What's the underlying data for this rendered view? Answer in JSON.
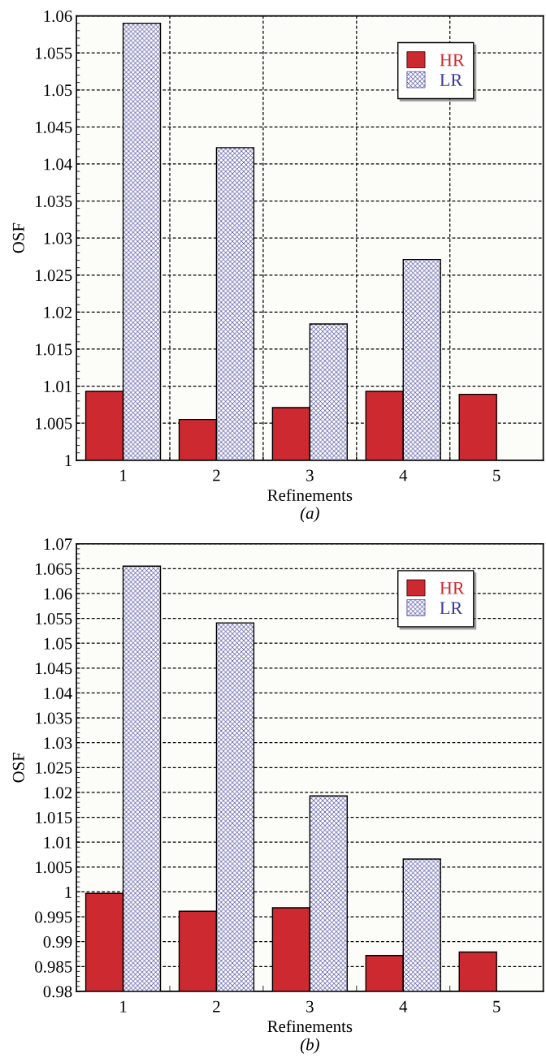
{
  "chart_data": [
    {
      "type": "bar",
      "categories": [
        "1",
        "2",
        "3",
        "4",
        "5"
      ],
      "xlabel": "Refinements",
      "ylabel": "OSF",
      "ylim": [
        1,
        1.06
      ],
      "yticks": [
        1,
        1.005,
        1.01,
        1.015,
        1.02,
        1.025,
        1.03,
        1.035,
        1.04,
        1.045,
        1.05,
        1.055,
        1.06
      ],
      "grid": true,
      "legend": "top right",
      "annotations": [
        "(a)"
      ],
      "series": [
        {
          "name": "HR",
          "color": "#cc2a30",
          "values": [
            1.0093,
            1.0055,
            1.0071,
            1.0093,
            1.0089
          ]
        },
        {
          "name": "LR",
          "color": "#3a3a9a",
          "values": [
            1.059,
            1.0422,
            1.0184,
            1.0271,
            null
          ]
        }
      ]
    },
    {
      "type": "bar",
      "categories": [
        "1",
        "2",
        "3",
        "4",
        "5"
      ],
      "xlabel": "Refinements",
      "ylabel": "OSF",
      "ylim": [
        0.98,
        1.07
      ],
      "yticks": [
        0.98,
        0.985,
        0.99,
        0.995,
        1,
        1.005,
        1.01,
        1.015,
        1.02,
        1.025,
        1.03,
        1.035,
        1.04,
        1.045,
        1.05,
        1.055,
        1.06,
        1.065,
        1.07
      ],
      "grid": "y",
      "legend": "top right",
      "annotations": [
        "(b)"
      ],
      "series": [
        {
          "name": "HR",
          "color": "#cc2a30",
          "values": [
            0.9997,
            0.9961,
            0.9968,
            0.9872,
            0.9879
          ]
        },
        {
          "name": "LR",
          "color": "#3a3a9a",
          "values": [
            1.0655,
            1.0541,
            1.0193,
            1.0066,
            null
          ]
        }
      ]
    }
  ]
}
